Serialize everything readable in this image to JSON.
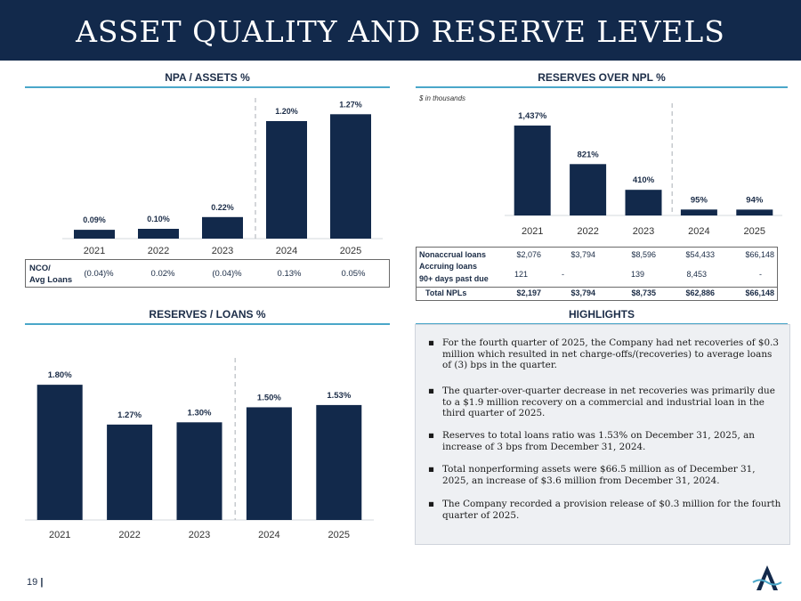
{
  "header": {
    "title": "ASSET QUALITY AND RESERVE LEVELS"
  },
  "colors": {
    "bar": "#12294b",
    "accent_line": "#4aa7c9",
    "header_bg": "#12294b"
  },
  "npa": {
    "title": "NPA / ASSETS %",
    "nco": {
      "label_line1": "NCO/",
      "label_line2": "Avg Loans",
      "values": [
        "(0.04)%",
        "0.02%",
        "(0.04)%",
        "0.13%",
        "0.05%"
      ]
    }
  },
  "reserves_npl": {
    "title": "RESERVES OVER NPL %",
    "note": "$ in thousands",
    "table": {
      "rows": [
        {
          "label": "Nonaccrual loans",
          "values": [
            "$2,076",
            "$3,794",
            "$8,596",
            "$54,433",
            "$66,148"
          ]
        },
        {
          "label_line1": "Accruing loans",
          "label_line2": "90+ days past due",
          "values": [
            "121",
            "-",
            "139",
            "8,453",
            "-"
          ]
        },
        {
          "label": "Total NPLs",
          "values": [
            "$2,197",
            "$3,794",
            "$8,735",
            "$62,886",
            "$66,148"
          ]
        }
      ]
    }
  },
  "reserves_loans": {
    "title": "RESERVES / LOANS %"
  },
  "highlights": {
    "title": "HIGHLIGHTS",
    "bullets": [
      "For the fourth quarter of 2025, the Company had net recoveries of $0.3 million which resulted in net charge-offs/(recoveries) to average loans of (3) bps in the quarter.",
      "The quarter-over-quarter decrease in net recoveries was primarily due to a $1.9 million recovery on a commercial and industrial loan in the third quarter of 2025.",
      "Reserves to total loans ratio was 1.53% on December 31, 2025, an increase of 3 bps from December 31, 2024.",
      "Total nonperforming assets were $66.5 million as of December 31, 2025, an increase of $3.6 million from December 31, 2024.",
      "The Company recorded a provision release of $0.3 million for the fourth quarter of 2025."
    ]
  },
  "footer": {
    "page": "19"
  },
  "chart_data": [
    {
      "id": "npa",
      "type": "bar",
      "categories": [
        "2021",
        "2022",
        "2023",
        "2024",
        "2025"
      ],
      "values": [
        0.09,
        0.1,
        0.22,
        1.2,
        1.27
      ],
      "labels": [
        "0.09%",
        "0.10%",
        "0.22%",
        "1.20%",
        "1.27%"
      ],
      "title": "NPA / ASSETS %",
      "ylim": [
        0,
        1.3
      ]
    },
    {
      "id": "npl",
      "type": "bar",
      "categories": [
        "2021",
        "2022",
        "2023",
        "2024",
        "2025"
      ],
      "values": [
        1437,
        821,
        410,
        95,
        94
      ],
      "labels": [
        "1,437%",
        "821%",
        "410%",
        "95%",
        "94%"
      ],
      "title": "RESERVES OVER NPL %",
      "ylim": [
        0,
        1480
      ]
    },
    {
      "id": "loans",
      "type": "bar",
      "categories": [
        "2021",
        "2022",
        "2023",
        "2024",
        "2025"
      ],
      "values": [
        1.8,
        1.27,
        1.3,
        1.5,
        1.53
      ],
      "labels": [
        "1.80%",
        "1.27%",
        "1.30%",
        "1.50%",
        "1.53%"
      ],
      "title": "RESERVES / LOANS %",
      "ylim": [
        0,
        1.92
      ]
    }
  ]
}
